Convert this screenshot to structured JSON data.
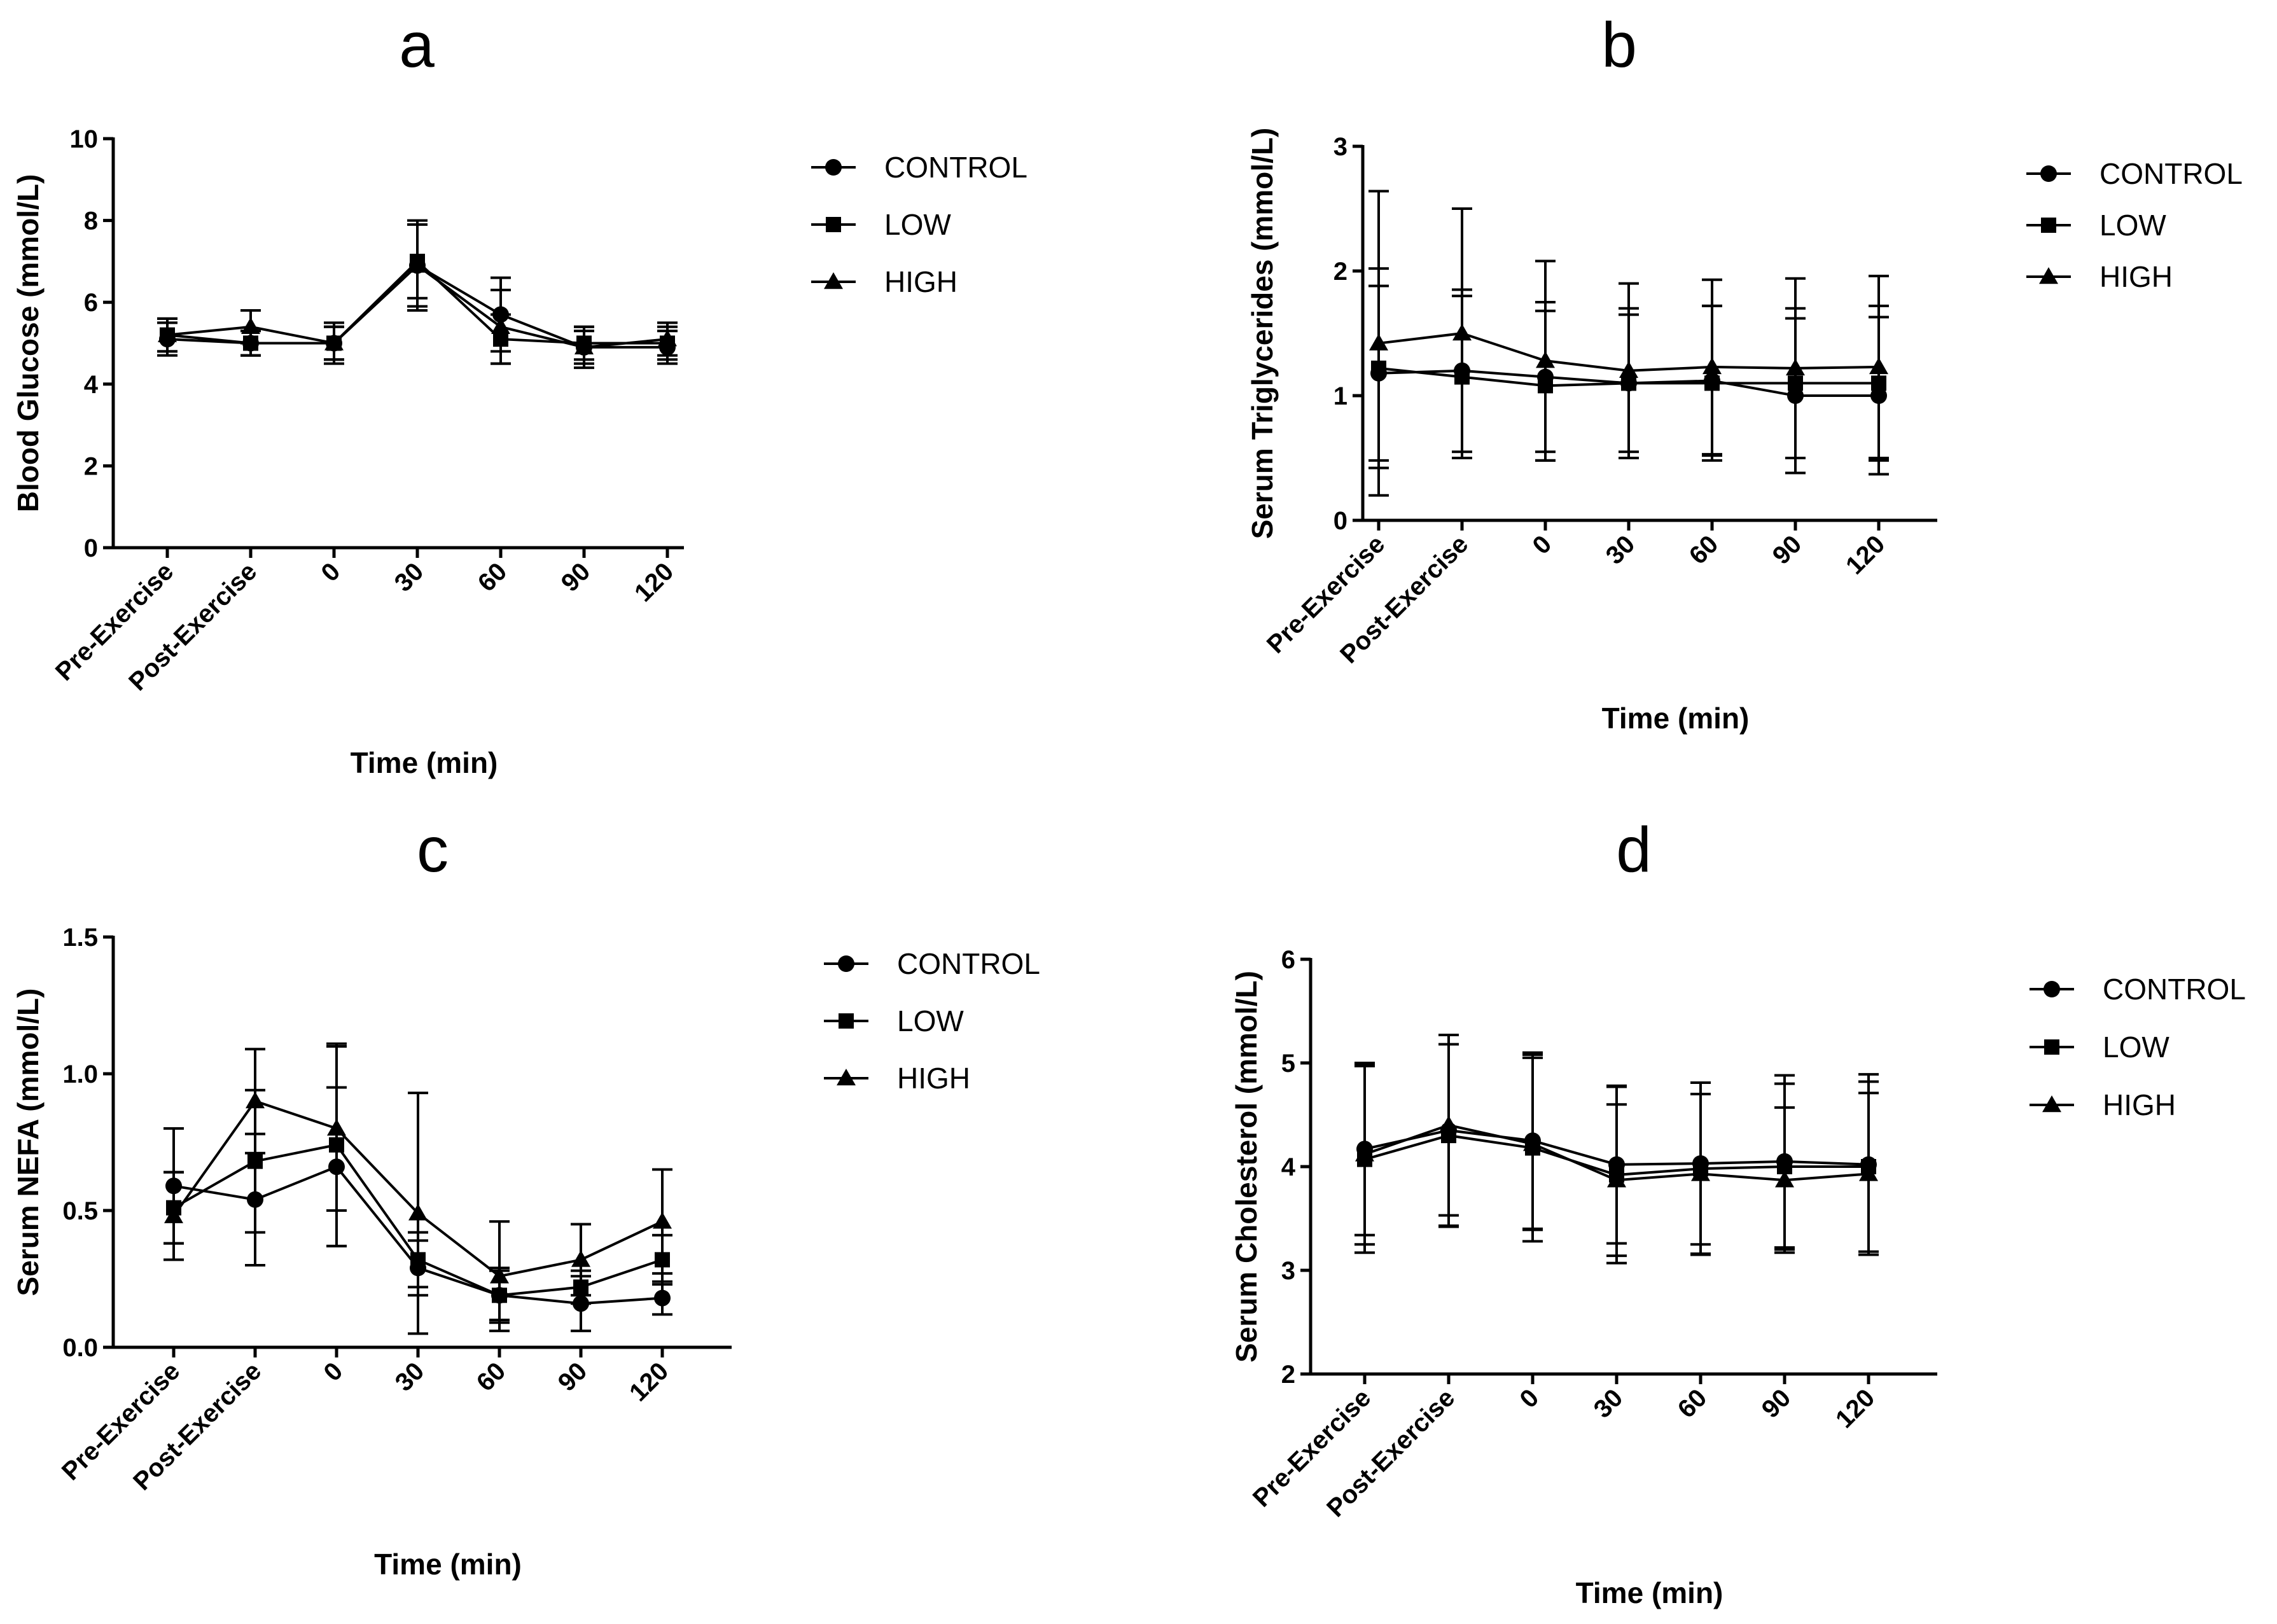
{
  "chart_data": [
    {
      "type": "line",
      "panel_label": "a",
      "xlabel": "Time (min)",
      "ylabel": "Blood Glucose (mmol/L)",
      "ylim": [
        0,
        10
      ],
      "yticks": [
        "0",
        "2",
        "4",
        "6",
        "8",
        "10"
      ],
      "categories": [
        "Pre-Exercise",
        "Post-Exercise",
        "0",
        "30",
        "60",
        "90",
        "120"
      ],
      "series": [
        {
          "name": "CONTROL",
          "marker": "circle",
          "values": [
            5.1,
            5.0,
            5.0,
            6.9,
            5.7,
            4.9,
            4.9
          ],
          "err": [
            0.4,
            0.3,
            0.4,
            1.1,
            0.9,
            0.4,
            0.4
          ]
        },
        {
          "name": "LOW",
          "marker": "square",
          "values": [
            5.2,
            5.0,
            5.0,
            7.0,
            5.1,
            5.0,
            5.0
          ],
          "err": [
            0.4,
            0.3,
            0.4,
            0.9,
            0.6,
            0.4,
            0.4
          ]
        },
        {
          "name": "HIGH",
          "marker": "triangle",
          "values": [
            5.2,
            5.4,
            5.0,
            6.9,
            5.4,
            4.9,
            5.1
          ],
          "err": [
            0.4,
            0.4,
            0.5,
            1.0,
            0.9,
            0.5,
            0.4
          ]
        }
      ]
    },
    {
      "type": "line",
      "panel_label": "b",
      "xlabel": "Time (min)",
      "ylabel": "Serum Triglycerides (mmol/L)",
      "ylim": [
        0,
        3
      ],
      "yticks": [
        "0",
        "1",
        "2",
        "3"
      ],
      "categories": [
        "Pre-Exercise",
        "Post-Exercise",
        "0",
        "30",
        "60",
        "90",
        "120"
      ],
      "series": [
        {
          "name": "CONTROL",
          "marker": "circle",
          "values": [
            1.18,
            1.2,
            1.15,
            1.1,
            1.12,
            1.0,
            1.0
          ],
          "err": [
            0.7,
            0.65,
            0.6,
            0.6,
            0.6,
            0.62,
            0.63
          ]
        },
        {
          "name": "LOW",
          "marker": "square",
          "values": [
            1.22,
            1.15,
            1.08,
            1.1,
            1.1,
            1.1,
            1.1
          ],
          "err": [
            0.8,
            0.65,
            0.6,
            0.55,
            0.62,
            0.6,
            0.62
          ]
        },
        {
          "name": "HIGH",
          "marker": "triangle",
          "values": [
            1.42,
            1.5,
            1.28,
            1.2,
            1.23,
            1.22,
            1.23
          ],
          "err": [
            1.22,
            1.0,
            0.8,
            0.7,
            0.7,
            0.72,
            0.73
          ]
        }
      ]
    },
    {
      "type": "line",
      "panel_label": "c",
      "xlabel": "Time (min)",
      "ylabel": "Serum NEFA (mmol/L)",
      "ylim": [
        0,
        1.5
      ],
      "yticks": [
        "0.0",
        "0.5",
        "1.0",
        "1.5"
      ],
      "categories": [
        "Pre-Exercise",
        "Post-Exercise",
        "0",
        "30",
        "60",
        "90",
        "120"
      ],
      "series": [
        {
          "name": "CONTROL",
          "marker": "circle",
          "values": [
            0.59,
            0.54,
            0.66,
            0.29,
            0.19,
            0.16,
            0.18
          ],
          "err": [
            0.21,
            0.24,
            0.29,
            0.1,
            0.09,
            0.1,
            0.06
          ]
        },
        {
          "name": "LOW",
          "marker": "square",
          "values": [
            0.51,
            0.68,
            0.74,
            0.32,
            0.19,
            0.22,
            0.32
          ],
          "err": [
            0.13,
            0.26,
            0.37,
            0.1,
            0.1,
            0.06,
            0.09
          ]
        },
        {
          "name": "HIGH",
          "marker": "triangle",
          "values": [
            0.48,
            0.9,
            0.8,
            0.49,
            0.26,
            0.32,
            0.46
          ],
          "err": [
            0.16,
            0.19,
            0.3,
            0.44,
            0.2,
            0.13,
            0.19
          ]
        }
      ]
    },
    {
      "type": "line",
      "panel_label": "d",
      "xlabel": "Time (min)",
      "ylabel": "Serum Cholesterol (mmol/L)",
      "ylim": [
        2,
        6
      ],
      "yticks": [
        "2",
        "3",
        "4",
        "5",
        "6"
      ],
      "categories": [
        "Pre-Exercise",
        "Post-Exercise",
        "0",
        "30",
        "60",
        "90",
        "120"
      ],
      "series": [
        {
          "name": "CONTROL",
          "marker": "circle",
          "values": [
            4.17,
            4.35,
            4.25,
            4.02,
            4.03,
            4.05,
            4.02
          ],
          "err": [
            0.83,
            0.92,
            0.85,
            0.76,
            0.78,
            0.83,
            0.87
          ]
        },
        {
          "name": "LOW",
          "marker": "square",
          "values": [
            4.07,
            4.3,
            4.18,
            3.92,
            3.98,
            4.0,
            4.0
          ],
          "err": [
            0.9,
            0.88,
            0.9,
            0.85,
            0.83,
            0.8,
            0.82
          ]
        },
        {
          "name": "HIGH",
          "marker": "triangle",
          "values": [
            4.12,
            4.4,
            4.22,
            3.87,
            3.93,
            3.87,
            3.93
          ],
          "err": [
            0.87,
            0.87,
            0.83,
            0.73,
            0.77,
            0.7,
            0.78
          ]
        }
      ]
    }
  ]
}
